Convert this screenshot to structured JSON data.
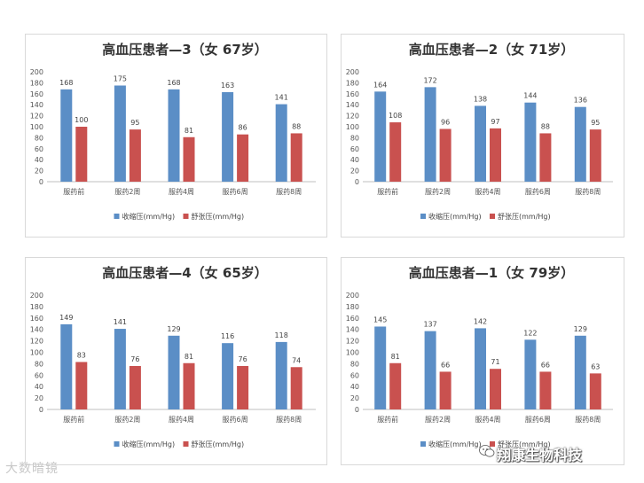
{
  "chart_data": [
    {
      "type": "bar",
      "title": "高血压患者—3（女  67岁）",
      "categories": [
        "服药前",
        "服药2周",
        "服药4周",
        "服药6周",
        "服药8周"
      ],
      "series": [
        {
          "name": "收缩压(mm/Hg)",
          "values": [
            168,
            175,
            168,
            163,
            141
          ],
          "color": "#5b8ec6"
        },
        {
          "name": "舒张压(mm/Hg)",
          "values": [
            100,
            95,
            81,
            86,
            88
          ],
          "color": "#c9514f"
        }
      ],
      "ylim": [
        0,
        200
      ],
      "yticks": [
        0,
        20,
        40,
        60,
        80,
        100,
        120,
        140,
        160,
        180,
        200
      ],
      "legend": "bottom"
    },
    {
      "type": "bar",
      "title": "高血压患者—2（女   71岁）",
      "categories": [
        "服药前",
        "服药2周",
        "服药4周",
        "服药6周",
        "服药8周"
      ],
      "series": [
        {
          "name": "收缩压(mm/Hg)",
          "values": [
            164,
            172,
            138,
            144,
            136
          ],
          "color": "#5b8ec6"
        },
        {
          "name": "舒张压(mm/Hg)",
          "values": [
            108,
            96,
            97,
            88,
            95
          ],
          "color": "#c9514f"
        }
      ],
      "ylim": [
        0,
        200
      ],
      "yticks": [
        0,
        20,
        40,
        60,
        80,
        100,
        120,
        140,
        160,
        180,
        200
      ],
      "legend": "bottom"
    },
    {
      "type": "bar",
      "title": "高血压患者—4（女  65岁）",
      "categories": [
        "服药前",
        "服药2周",
        "服药4周",
        "服药6周",
        "服药8周"
      ],
      "series": [
        {
          "name": "收缩压(mm/Hg)",
          "values": [
            149,
            141,
            129,
            116,
            118
          ],
          "color": "#5b8ec6"
        },
        {
          "name": "舒张压(mm/Hg)",
          "values": [
            83,
            76,
            81,
            76,
            74
          ],
          "color": "#c9514f"
        }
      ],
      "ylim": [
        0,
        200
      ],
      "yticks": [
        0,
        20,
        40,
        60,
        80,
        100,
        120,
        140,
        160,
        180,
        200
      ],
      "legend": "bottom"
    },
    {
      "type": "bar",
      "title": "高血压患者—1（女  79岁）",
      "categories": [
        "服药前",
        "服药2周",
        "服药4周",
        "服药6周",
        "服药8周"
      ],
      "series": [
        {
          "name": "收缩压(mm/Hg)",
          "values": [
            145,
            137,
            142,
            122,
            129
          ],
          "color": "#5b8ec6"
        },
        {
          "name": "舒张压(mm/Hg)",
          "values": [
            81,
            66,
            71,
            66,
            63
          ],
          "color": "#c9514f"
        }
      ],
      "ylim": [
        0,
        200
      ],
      "yticks": [
        0,
        20,
        40,
        60,
        80,
        100,
        120,
        140,
        160,
        180,
        200
      ],
      "legend": "bottom"
    }
  ],
  "watermarks": {
    "left": "大数暗镜",
    "right": "翔康生物科技",
    "right_icon": "wechat-icon"
  }
}
